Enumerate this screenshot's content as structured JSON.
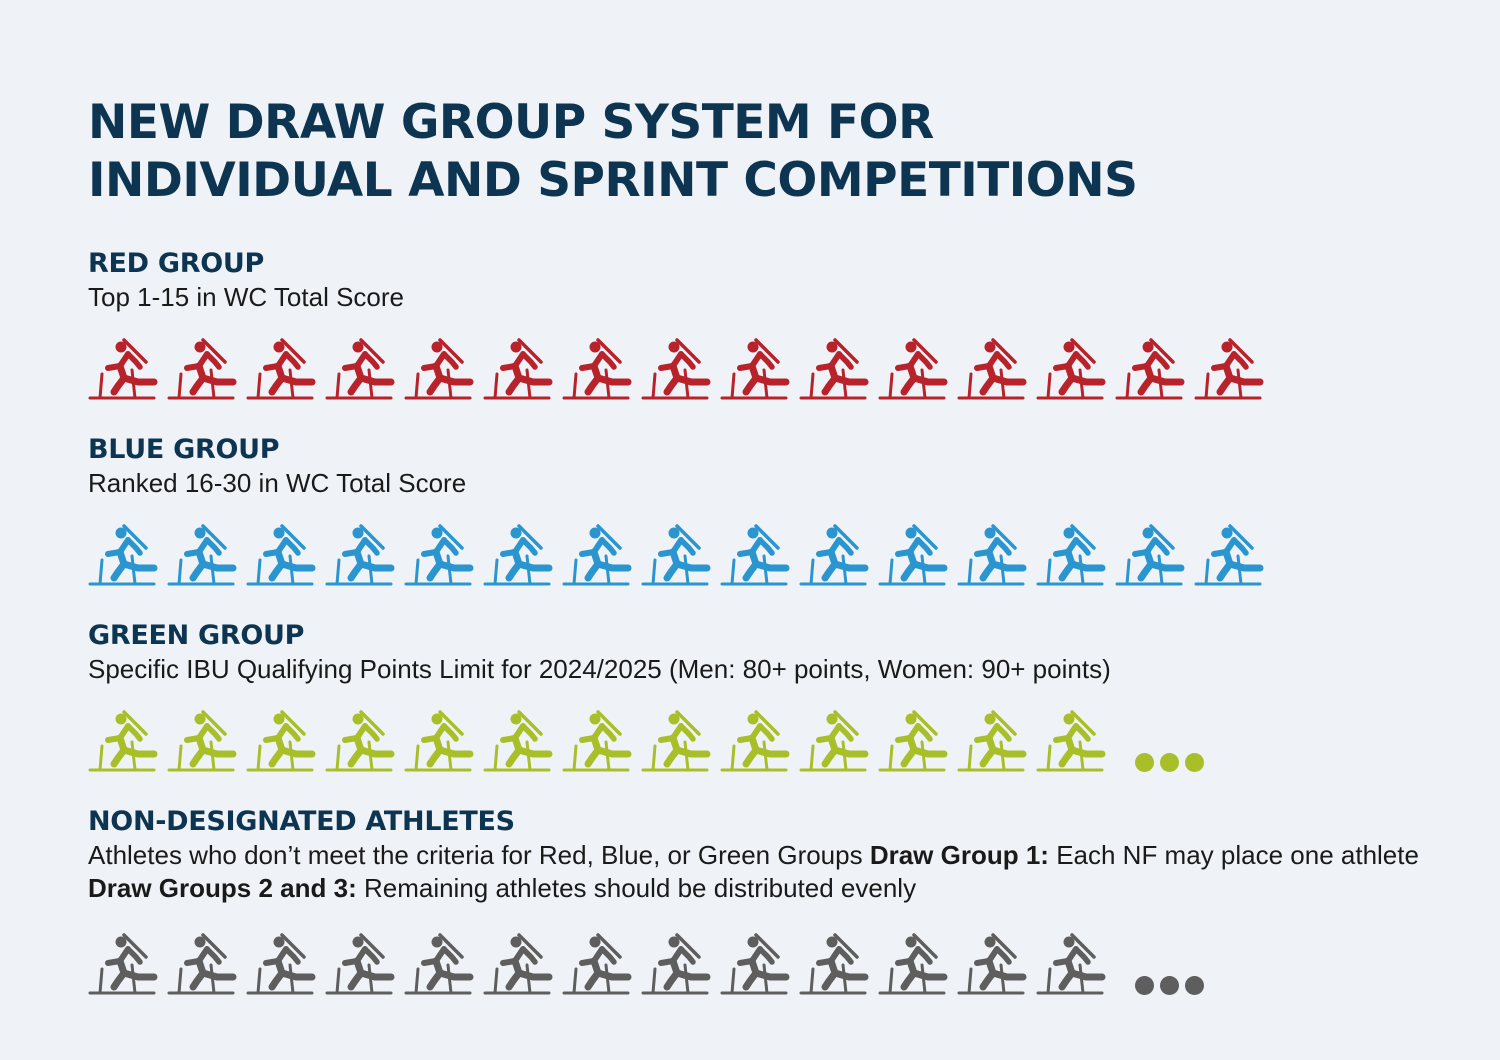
{
  "title": {
    "line1": "NEW DRAW GROUP SYSTEM FOR",
    "line2": "INDIVIDUAL AND SPRINT COMPETITIONS"
  },
  "groups": [
    {
      "heading": "RED GROUP",
      "description": "Top 1-15 in WC Total Score",
      "color": "#b8222b",
      "icon": "biathlete-skier-icon",
      "athletes": 15,
      "more": false
    },
    {
      "heading": "BLUE GROUP",
      "description": "Ranked 16-30 in WC Total Score",
      "color": "#2a95cf",
      "icon": "biathlete-skier-icon",
      "athletes": 15,
      "more": false
    },
    {
      "heading": "GREEN GROUP",
      "description": "Specific IBU Qualifying Points Limit for 2024/2025 (Men: 80+ points, Women: 90+ points)",
      "color": "#a9bf2a",
      "icon": "biathlete-skier-icon",
      "athletes": 13,
      "more": true
    },
    {
      "heading": "NON-DESIGNATED ATHLETES",
      "description_parts": [
        {
          "text": "Athletes who don’t meet the criteria for Red, Blue, or Green Groups  ",
          "bold": false
        },
        {
          "text": "Draw Group 1:",
          "bold": true
        },
        {
          "text": " Each NF may place one athlete  ",
          "bold": false
        },
        {
          "text": "Draw Groups 2 and 3:",
          "bold": true
        },
        {
          "text": " Remaining athletes should be distributed evenly",
          "bold": false
        }
      ],
      "color": "#5e5e5e",
      "icon": "biathlete-skier-icon",
      "athletes": 13,
      "more": true
    }
  ]
}
